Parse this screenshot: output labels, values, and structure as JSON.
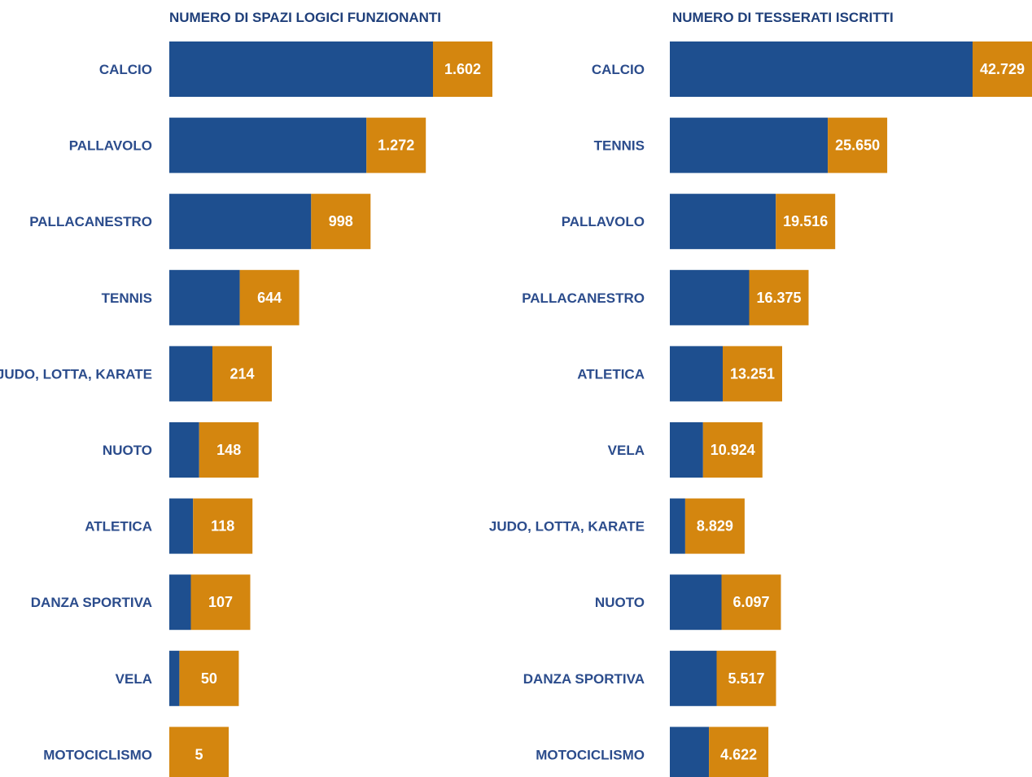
{
  "colors": {
    "bar_blue": "#1e4f8f",
    "bar_orange": "#d4860f",
    "label_blue": "#2b4c8c",
    "title_blue": "#1f3f7a"
  },
  "chart_data": [
    {
      "type": "bar",
      "orientation": "horizontal",
      "title": "NUMERO DI SPAZI LOGICI FUNZIONANTI",
      "categories": [
        "CALCIO",
        "PALLAVOLO",
        "PALLACANESTRO",
        "TENNIS",
        "JUDO, LOTTA, KARATE",
        "NUOTO",
        "ATLETICA",
        "DANZA SPORTIVA",
        "VELA",
        "MOTOCICLISMO"
      ],
      "values": [
        1602,
        1272,
        998,
        644,
        214,
        148,
        118,
        107,
        50,
        5
      ],
      "value_labels": [
        "1.602",
        "1.272",
        "998",
        "644",
        "214",
        "148",
        "118",
        "107",
        "50",
        "5"
      ]
    },
    {
      "type": "bar",
      "orientation": "horizontal",
      "title": "NUMERO DI TESSERATI ISCRITTI",
      "categories": [
        "CALCIO",
        "TENNIS",
        "PALLAVOLO",
        "PALLACANESTRO",
        "ATLETICA",
        "VELA",
        "JUDO, LOTTA, KARATE",
        "NUOTO",
        "DANZA SPORTIVA",
        "MOTOCICLISMO"
      ],
      "values": [
        42729,
        25650,
        19516,
        16375,
        13251,
        10924,
        8829,
        6097,
        5517,
        4622
      ],
      "value_labels": [
        "42.729",
        "25.650",
        "19.516",
        "16.375",
        "13.251",
        "10.924",
        "8.829",
        "6.097",
        "5.517",
        "4.622"
      ]
    }
  ]
}
